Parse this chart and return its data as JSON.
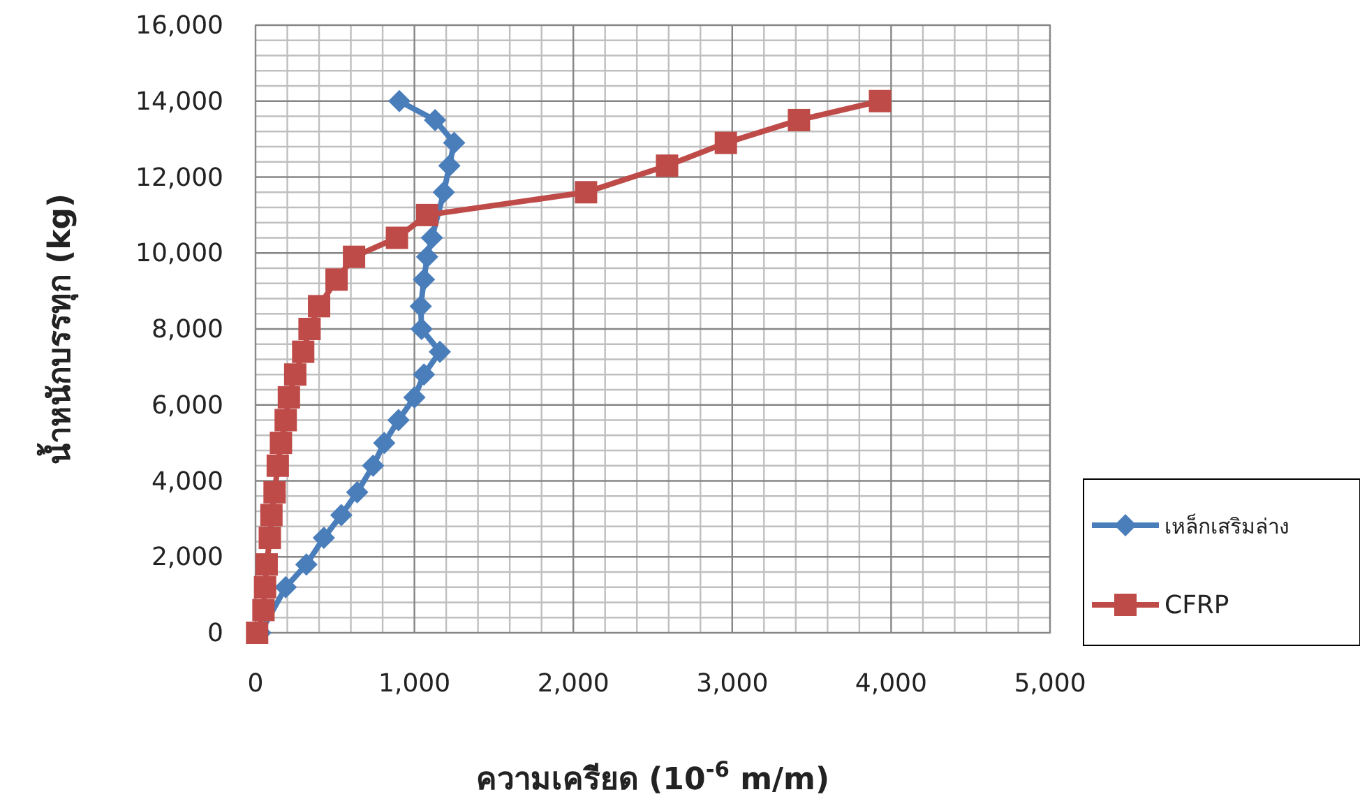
{
  "chart_data": {
    "type": "line",
    "xlabel": "ความเครียด (10$^{-6}$ m/m)",
    "ylabel": "น้ำหนักบรรทุก (kg)",
    "xlim": [
      0,
      5000
    ],
    "xticks": [
      {
        "value": 0,
        "label": "0"
      },
      {
        "value": 1000,
        "label": "1,000"
      },
      {
        "value": 2000,
        "label": "2,000"
      },
      {
        "value": 3000,
        "label": "3,000"
      },
      {
        "value": 4000,
        "label": "4,000"
      },
      {
        "value": 5000,
        "label": "5,000"
      }
    ],
    "ylim": [
      0,
      16000
    ],
    "yticks": [
      {
        "value": 0,
        "label": "0"
      },
      {
        "value": 2000,
        "label": "2,000"
      },
      {
        "value": 4000,
        "label": "4,000"
      },
      {
        "value": 6000,
        "label": "6,000"
      },
      {
        "value": 8000,
        "label": "8,000"
      },
      {
        "value": 10000,
        "label": "10,000"
      },
      {
        "value": 12000,
        "label": "12,000"
      },
      {
        "value": 14000,
        "label": "14,000"
      },
      {
        "value": 16000,
        "label": "16,000"
      }
    ],
    "grid": true,
    "legend": "right",
    "series": [
      {
        "name": "เหล็กเสริมล่าง",
        "color": "#4a7ebb",
        "marker": "diamond",
        "x": [
          30,
          null,
          190,
          320,
          430,
          540,
          640,
          740,
          810,
          900,
          1000,
          1060,
          1160,
          1045,
          1040,
          1060,
          1080,
          1110,
          null,
          1185,
          1220,
          1250,
          1130,
          905
        ],
        "values": [
          0,
          null,
          1200,
          1800,
          2500,
          3100,
          3700,
          4400,
          5000,
          5600,
          6200,
          6800,
          7400,
          8000,
          8600,
          9300,
          9900,
          10400,
          null,
          11600,
          12300,
          12900,
          13500,
          14000
        ]
      },
      {
        "name": "CFRP",
        "color": "#be4b48",
        "marker": "square",
        "x": [
          10,
          50,
          60,
          70,
          90,
          100,
          120,
          140,
          160,
          190,
          210,
          250,
          300,
          340,
          400,
          510,
          620,
          890,
          1080,
          2080,
          2590,
          2960,
          3420,
          3930
        ],
        "values": [
          0,
          600,
          1200,
          1800,
          2500,
          3100,
          3700,
          4400,
          5000,
          5600,
          6200,
          6800,
          7400,
          8000,
          8600,
          9300,
          9900,
          10400,
          11000,
          11600,
          12300,
          12900,
          13500,
          14000
        ]
      }
    ]
  }
}
